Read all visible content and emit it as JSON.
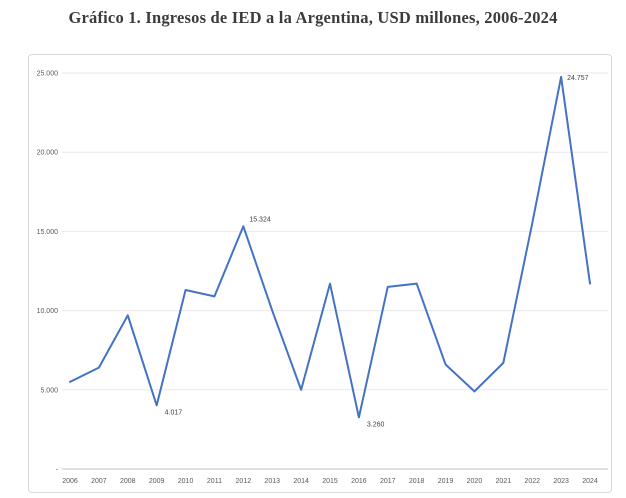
{
  "page": {
    "title": "Gráfico 1. Ingresos de IED a la Argentina, USD millones, 2006-2024"
  },
  "chart_data": {
    "type": "line",
    "title": "Gráfico 1. Ingresos de IED a la Argentina, USD millones, 2006-2024",
    "xlabel": "",
    "ylabel": "",
    "x": [
      2006,
      2007,
      2008,
      2009,
      2010,
      2011,
      2012,
      2013,
      2014,
      2015,
      2016,
      2017,
      2018,
      2019,
      2020,
      2021,
      2022,
      2023,
      2024
    ],
    "x_tick_labels": [
      "2006",
      "2007",
      "2008",
      "2009",
      "2010",
      "2011",
      "2012",
      "2013",
      "2014",
      "2015",
      "2016",
      "2017",
      "2018",
      "2019",
      "2020",
      "2021",
      "2022",
      "2023",
      "2024"
    ],
    "series": [
      {
        "name": "Ingresos de IED a la Argentina (USD millones)",
        "values": [
          5500,
          6400,
          9700,
          4017,
          11300,
          10900,
          15324,
          10000,
          5000,
          11700,
          3260,
          11500,
          11700,
          6600,
          4900,
          6700,
          15500,
          24757,
          11700
        ]
      }
    ],
    "ylim": [
      0,
      25000
    ],
    "y_ticks": [
      0,
      5000,
      10000,
      15000,
      20000,
      25000
    ],
    "y_tick_labels": [
      "-",
      "5.000",
      "10.000",
      "15.000",
      "20.000",
      "25.000"
    ],
    "grid": true,
    "legend": "none",
    "annotations": [
      {
        "year": 2009,
        "label": "4.017",
        "placement": "below-right"
      },
      {
        "year": 2012,
        "label": "15.324",
        "placement": "above-right"
      },
      {
        "year": 2016,
        "label": "3.260",
        "placement": "below-right"
      },
      {
        "year": 2023,
        "label": "24.757",
        "placement": "right"
      }
    ],
    "colors": {
      "line": "#4472C4",
      "gridline": "#E8E8E8",
      "axis_line": "#C0C0C0",
      "tick_text": "#595959",
      "data_label_text": "#404040",
      "title_text": "#3B3B3B",
      "frame_border": "#D9D9D9"
    }
  }
}
